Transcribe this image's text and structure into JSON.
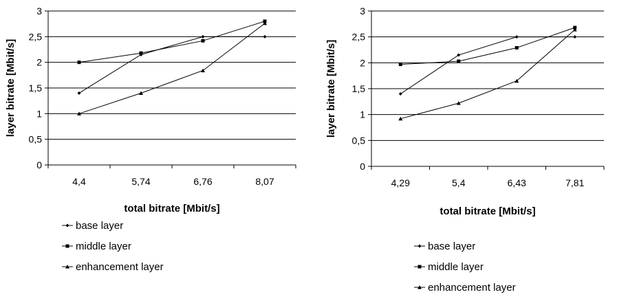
{
  "chart_data": [
    {
      "type": "line",
      "categories": [
        "4,4",
        "5,74",
        "6,76",
        "8,07"
      ],
      "xlabel": "total bitrate [Mbit/s]",
      "ylabel": "layer bitrate [Mbit/s]",
      "ylim": [
        0,
        3
      ],
      "yticks": [
        "0",
        "0,5",
        "1",
        "1,5",
        "2",
        "2,5",
        "3"
      ],
      "grid": "horizontal",
      "legend_position": "bottom",
      "series": [
        {
          "name": "base layer",
          "marker": "diamond",
          "values": [
            1.4,
            2.15,
            2.5,
            2.5
          ]
        },
        {
          "name": "middle layer",
          "marker": "square",
          "values": [
            2.0,
            2.18,
            2.42,
            2.8
          ]
        },
        {
          "name": "enhancement layer",
          "marker": "triangle",
          "values": [
            1.0,
            1.4,
            1.84,
            2.76
          ]
        }
      ]
    },
    {
      "type": "line",
      "categories": [
        "4,29",
        "5,4",
        "6,43",
        "7,81"
      ],
      "xlabel": "total bitrate [Mbit/s]",
      "ylabel": "layer bitrate [Mbit/s]",
      "ylim": [
        0,
        3
      ],
      "yticks": [
        "0",
        "0,5",
        "1",
        "1,5",
        "2",
        "2,5",
        "3"
      ],
      "grid": "horizontal",
      "legend_position": "bottom",
      "series": [
        {
          "name": "base layer",
          "marker": "diamond",
          "values": [
            1.4,
            2.15,
            2.5,
            2.5
          ]
        },
        {
          "name": "middle layer",
          "marker": "square",
          "values": [
            1.97,
            2.03,
            2.29,
            2.68
          ]
        },
        {
          "name": "enhancement layer",
          "marker": "triangle",
          "values": [
            0.92,
            1.22,
            1.65,
            2.64
          ]
        }
      ]
    }
  ]
}
